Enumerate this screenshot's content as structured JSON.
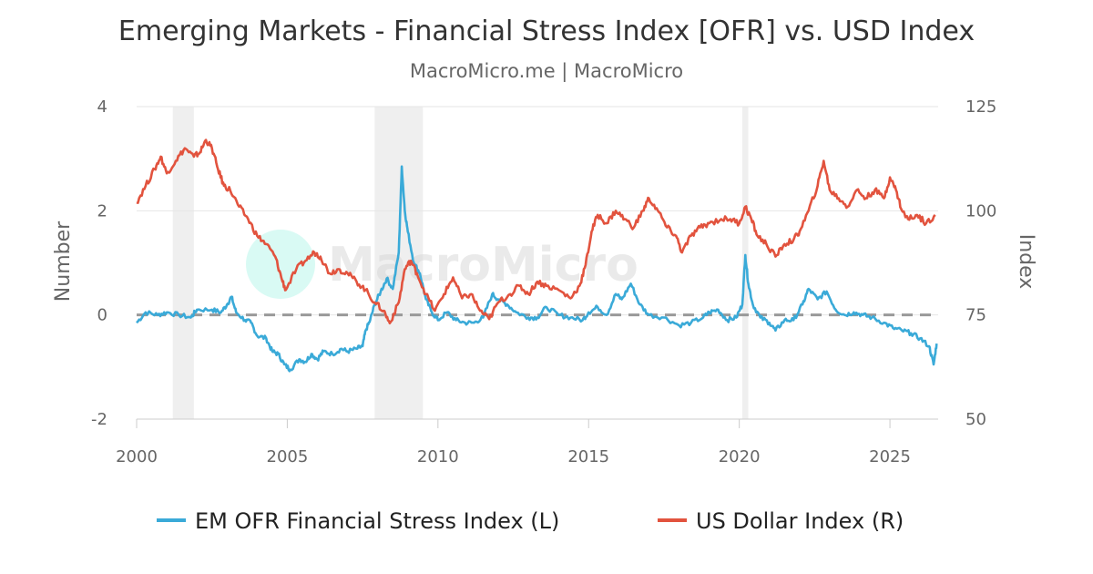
{
  "chart_data": {
    "type": "line",
    "title": "Emerging Markets - Financial Stress Index [OFR] vs. USD Index",
    "subtitle": "MacroMicro.me | MacroMicro",
    "watermark": "MacroMicro",
    "y_left": {
      "label": "Number",
      "range": [
        -2,
        4
      ],
      "ticks": [
        -2,
        0,
        2,
        4
      ]
    },
    "y_right": {
      "label": "Index",
      "range": [
        50,
        125
      ],
      "ticks": [
        50,
        75,
        100,
        125
      ]
    },
    "x_axis": {
      "range": [
        2000,
        2026.6
      ],
      "ticks": [
        2000,
        2005,
        2010,
        2015,
        2020,
        2025
      ]
    },
    "reference_line": {
      "axis": "left",
      "value": 0,
      "style": "dashed",
      "color": "#999999"
    },
    "recession_bands": [
      [
        2001.2,
        2001.9
      ],
      [
        2007.9,
        2009.5
      ],
      [
        2020.1,
        2020.3
      ]
    ],
    "legend": {
      "position": "bottom-center"
    },
    "series": [
      {
        "name": "EM OFR Financial Stress Index (L)",
        "axis": "left",
        "color": "#3aaad8",
        "points": [
          [
            2000.0,
            -0.15
          ],
          [
            2000.3,
            0.05
          ],
          [
            2000.7,
            0.0
          ],
          [
            2001.0,
            0.05
          ],
          [
            2001.4,
            0.0
          ],
          [
            2001.8,
            -0.05
          ],
          [
            2002.0,
            0.1
          ],
          [
            2002.5,
            0.1
          ],
          [
            2002.8,
            0.05
          ],
          [
            2003.0,
            0.2
          ],
          [
            2003.15,
            0.35
          ],
          [
            2003.3,
            0.05
          ],
          [
            2003.6,
            -0.1
          ],
          [
            2003.8,
            -0.15
          ],
          [
            2004.0,
            -0.4
          ],
          [
            2004.3,
            -0.45
          ],
          [
            2004.5,
            -0.7
          ],
          [
            2004.7,
            -0.75
          ],
          [
            2004.9,
            -0.95
          ],
          [
            2005.1,
            -1.05
          ],
          [
            2005.4,
            -0.85
          ],
          [
            2005.6,
            -0.9
          ],
          [
            2005.8,
            -0.75
          ],
          [
            2006.0,
            -0.85
          ],
          [
            2006.2,
            -0.7
          ],
          [
            2006.5,
            -0.75
          ],
          [
            2006.8,
            -0.65
          ],
          [
            2007.0,
            -0.7
          ],
          [
            2007.3,
            -0.65
          ],
          [
            2007.5,
            -0.6
          ],
          [
            2007.6,
            -0.3
          ],
          [
            2007.75,
            -0.1
          ],
          [
            2007.9,
            0.2
          ],
          [
            2008.1,
            0.45
          ],
          [
            2008.3,
            0.7
          ],
          [
            2008.5,
            0.5
          ],
          [
            2008.7,
            1.2
          ],
          [
            2008.8,
            2.85
          ],
          [
            2008.9,
            2.0
          ],
          [
            2009.0,
            1.6
          ],
          [
            2009.2,
            1.0
          ],
          [
            2009.4,
            0.8
          ],
          [
            2009.6,
            0.3
          ],
          [
            2009.8,
            0.05
          ],
          [
            2010.0,
            -0.1
          ],
          [
            2010.3,
            0.05
          ],
          [
            2010.6,
            -0.1
          ],
          [
            2010.9,
            -0.15
          ],
          [
            2011.2,
            -0.15
          ],
          [
            2011.5,
            -0.05
          ],
          [
            2011.8,
            0.4
          ],
          [
            2012.0,
            0.3
          ],
          [
            2012.3,
            0.2
          ],
          [
            2012.6,
            0.05
          ],
          [
            2013.0,
            -0.05
          ],
          [
            2013.3,
            -0.05
          ],
          [
            2013.6,
            0.15
          ],
          [
            2014.0,
            0.0
          ],
          [
            2014.4,
            -0.05
          ],
          [
            2014.8,
            -0.1
          ],
          [
            2015.0,
            0.05
          ],
          [
            2015.3,
            0.15
          ],
          [
            2015.6,
            0.0
          ],
          [
            2015.9,
            0.4
          ],
          [
            2016.1,
            0.3
          ],
          [
            2016.4,
            0.6
          ],
          [
            2016.7,
            0.2
          ],
          [
            2017.0,
            0.0
          ],
          [
            2017.5,
            -0.05
          ],
          [
            2018.0,
            -0.2
          ],
          [
            2018.4,
            -0.15
          ],
          [
            2018.8,
            -0.05
          ],
          [
            2019.0,
            0.05
          ],
          [
            2019.3,
            0.1
          ],
          [
            2019.6,
            -0.1
          ],
          [
            2019.9,
            -0.05
          ],
          [
            2020.1,
            0.2
          ],
          [
            2020.2,
            1.15
          ],
          [
            2020.3,
            0.6
          ],
          [
            2020.45,
            0.2
          ],
          [
            2020.7,
            -0.05
          ],
          [
            2021.0,
            -0.15
          ],
          [
            2021.2,
            -0.3
          ],
          [
            2021.5,
            -0.1
          ],
          [
            2021.8,
            -0.1
          ],
          [
            2022.1,
            0.2
          ],
          [
            2022.3,
            0.5
          ],
          [
            2022.6,
            0.3
          ],
          [
            2022.9,
            0.45
          ],
          [
            2023.2,
            0.1
          ],
          [
            2023.5,
            0.0
          ],
          [
            2023.8,
            0.05
          ],
          [
            2024.1,
            0.0
          ],
          [
            2024.4,
            -0.05
          ],
          [
            2024.8,
            -0.15
          ],
          [
            2025.1,
            -0.25
          ],
          [
            2025.4,
            -0.3
          ],
          [
            2025.7,
            -0.35
          ],
          [
            2026.0,
            -0.45
          ],
          [
            2026.3,
            -0.6
          ],
          [
            2026.45,
            -0.95
          ],
          [
            2026.55,
            -0.55
          ]
        ]
      },
      {
        "name": "US Dollar Index (R)",
        "axis": "right",
        "color": "#e2533e",
        "points": [
          [
            2000.0,
            102
          ],
          [
            2000.3,
            106
          ],
          [
            2000.6,
            110
          ],
          [
            2000.8,
            113
          ],
          [
            2001.0,
            109
          ],
          [
            2001.3,
            112
          ],
          [
            2001.6,
            115
          ],
          [
            2001.9,
            113
          ],
          [
            2002.1,
            114
          ],
          [
            2002.3,
            117
          ],
          [
            2002.5,
            115
          ],
          [
            2002.7,
            110
          ],
          [
            2002.9,
            106
          ],
          [
            2003.1,
            105
          ],
          [
            2003.4,
            101
          ],
          [
            2003.7,
            98
          ],
          [
            2004.0,
            94
          ],
          [
            2004.3,
            92
          ],
          [
            2004.6,
            89
          ],
          [
            2004.8,
            84
          ],
          [
            2004.95,
            81
          ],
          [
            2005.3,
            86
          ],
          [
            2005.6,
            88
          ],
          [
            2005.9,
            90
          ],
          [
            2006.1,
            89
          ],
          [
            2006.4,
            85
          ],
          [
            2006.7,
            86
          ],
          [
            2007.0,
            85
          ],
          [
            2007.3,
            83
          ],
          [
            2007.6,
            81
          ],
          [
            2007.9,
            78
          ],
          [
            2008.2,
            76
          ],
          [
            2008.4,
            73
          ],
          [
            2008.7,
            78
          ],
          [
            2008.9,
            86
          ],
          [
            2009.1,
            88
          ],
          [
            2009.3,
            85
          ],
          [
            2009.6,
            80
          ],
          [
            2009.9,
            76
          ],
          [
            2010.2,
            80
          ],
          [
            2010.5,
            84
          ],
          [
            2010.8,
            79
          ],
          [
            2011.1,
            80
          ],
          [
            2011.4,
            76
          ],
          [
            2011.7,
            74
          ],
          [
            2012.0,
            78
          ],
          [
            2012.4,
            80
          ],
          [
            2012.7,
            82
          ],
          [
            2013.0,
            80
          ],
          [
            2013.3,
            83
          ],
          [
            2013.6,
            82
          ],
          [
            2014.0,
            81
          ],
          [
            2014.4,
            79
          ],
          [
            2014.7,
            82
          ],
          [
            2014.9,
            87
          ],
          [
            2015.1,
            95
          ],
          [
            2015.3,
            99
          ],
          [
            2015.6,
            97
          ],
          [
            2015.9,
            100
          ],
          [
            2016.2,
            98
          ],
          [
            2016.5,
            96
          ],
          [
            2016.8,
            100
          ],
          [
            2017.0,
            103
          ],
          [
            2017.3,
            100
          ],
          [
            2017.6,
            96
          ],
          [
            2017.9,
            94
          ],
          [
            2018.1,
            90
          ],
          [
            2018.4,
            94
          ],
          [
            2018.7,
            96
          ],
          [
            2019.0,
            97
          ],
          [
            2019.4,
            98
          ],
          [
            2019.7,
            98
          ],
          [
            2020.0,
            97
          ],
          [
            2020.2,
            101
          ],
          [
            2020.4,
            98
          ],
          [
            2020.6,
            94
          ],
          [
            2020.9,
            92
          ],
          [
            2021.2,
            89
          ],
          [
            2021.5,
            92
          ],
          [
            2021.8,
            93
          ],
          [
            2022.0,
            95
          ],
          [
            2022.3,
            100
          ],
          [
            2022.6,
            106
          ],
          [
            2022.8,
            112
          ],
          [
            2023.0,
            105
          ],
          [
            2023.3,
            103
          ],
          [
            2023.6,
            101
          ],
          [
            2023.9,
            105
          ],
          [
            2024.2,
            103
          ],
          [
            2024.5,
            105
          ],
          [
            2024.8,
            103
          ],
          [
            2025.0,
            108
          ],
          [
            2025.2,
            105
          ],
          [
            2025.4,
            100
          ],
          [
            2025.6,
            98
          ],
          [
            2025.9,
            99
          ],
          [
            2026.2,
            97
          ],
          [
            2026.5,
            99
          ]
        ]
      }
    ]
  }
}
